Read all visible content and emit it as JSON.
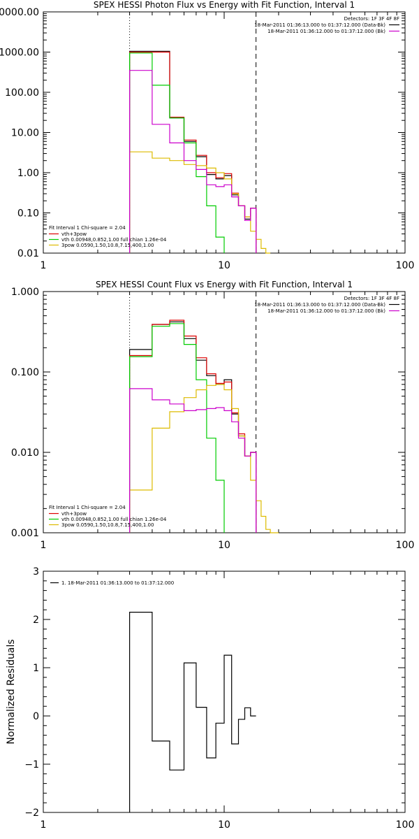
{
  "chart_data": [
    {
      "type": "line",
      "title": "SPEX HESSI Photon Flux vs Energy with Fit Function, Interval 1",
      "xscale": "log",
      "yscale": "log",
      "xlim": [
        1,
        100
      ],
      "ylim": [
        0.01,
        10000
      ],
      "x_ticks": [
        1,
        10,
        100
      ],
      "x_tick_labels": [
        "1",
        "10",
        "100"
      ],
      "y_ticks": [
        0.01,
        0.1,
        1,
        10,
        100,
        1000,
        10000
      ],
      "y_tick_labels": [
        "0.01",
        "0.10",
        "1.00",
        "10.00",
        "100.00",
        "1000.00",
        "10000.00"
      ],
      "vlines": [
        {
          "x": 3,
          "style": "dotted"
        },
        {
          "x": 15,
          "style": "dashed"
        }
      ],
      "bin_edges": [
        3,
        4,
        5,
        6,
        7,
        8,
        9,
        10,
        11,
        12,
        13,
        14,
        15,
        16,
        17,
        18,
        19,
        20
      ],
      "legend_top": {
        "line1": "Detectors: 1F 3F 4F 8F",
        "entries": [
          {
            "label": "18-Mar-2011 01:36:13.000 to 01:37:12.000 (Data-Bk)",
            "color": "#000000"
          },
          {
            "label": "18-Mar-2011 01:36:12.000 to 01:37:12.000 (Bk)",
            "color": "#cc00cc"
          }
        ]
      },
      "legend_bottom": {
        "line1": "Fit Interval 1    Chi-square = 2.04",
        "entries": [
          {
            "label": "vth+3pow",
            "color": "#dd0000"
          },
          {
            "label": "vth 0.00948,0.852,1.00   full chian 1.26e-04",
            "color": "#00cc00"
          },
          {
            "label": "3pow 0.0590,1.50,10.8,7.15,400,1.00",
            "color": "#ddbb00"
          }
        ]
      },
      "series": [
        {
          "color": "#000000",
          "values": [
            1050,
            1050,
            23,
            6,
            2.5,
            0.9,
            0.7,
            0.85,
            0.28,
            0.15,
            0.07,
            0.13
          ]
        },
        {
          "color": "#dd0000",
          "values": [
            1000,
            1000,
            24,
            6.5,
            2.7,
            1.0,
            0.75,
            0.95,
            0.31,
            0.15,
            0.08,
            0.13
          ]
        },
        {
          "color": "#00cc00",
          "values": [
            950,
            150,
            23,
            5.5,
            0.8,
            0.15,
            0.025
          ]
        },
        {
          "color": "#ddbb00",
          "values": [
            3.3,
            2.3,
            2.0,
            1.6,
            1.5,
            1.3,
            1.0,
            0.7,
            0.3,
            0.15,
            0.08,
            0.035,
            0.022,
            0.013,
            0.009
          ]
        },
        {
          "color": "#cc00cc",
          "values": [
            350,
            16,
            5.5,
            2.0,
            1.2,
            0.5,
            0.45,
            0.5,
            0.25,
            0.15,
            0.065,
            0.13
          ]
        }
      ]
    },
    {
      "type": "line",
      "title": "SPEX HESSI Count Flux vs Energy with Fit Function, Interval 1",
      "xscale": "log",
      "yscale": "log",
      "xlim": [
        1,
        100
      ],
      "ylim": [
        0.001,
        1
      ],
      "x_ticks": [
        1,
        10,
        100
      ],
      "x_tick_labels": [
        "1",
        "10",
        "100"
      ],
      "y_ticks": [
        0.001,
        0.01,
        0.1,
        1
      ],
      "y_tick_labels": [
        "0.001",
        "0.010",
        "0.100",
        "1.000"
      ],
      "vlines": [
        {
          "x": 3,
          "style": "dotted"
        },
        {
          "x": 15,
          "style": "dashed"
        }
      ],
      "bin_edges": [
        3,
        4,
        5,
        6,
        7,
        8,
        9,
        10,
        11,
        12,
        13,
        14,
        15,
        16,
        17,
        18,
        19,
        20
      ],
      "legend_top": {
        "line1": "Detectors: 1F 3F 4F 8F",
        "entries": [
          {
            "label": "18-Mar-2011 01:36:13.000 to 01:37:12.000 (Data-Bk)",
            "color": "#000000"
          },
          {
            "label": "18-Mar-2011 01:36:12.000 to 01:37:12.000 (Bk)",
            "color": "#cc00cc"
          }
        ]
      },
      "legend_bottom": {
        "line1": "Fit Interval 1    Chi-square = 2.04",
        "entries": [
          {
            "label": "vth+3pow",
            "color": "#dd0000"
          },
          {
            "label": "vth 0.00948,0.852,1.00   full chian 1.26e-04",
            "color": "#00cc00"
          },
          {
            "label": "3pow 0.0590,1.50,10.8,7.15,400,1.00",
            "color": "#ddbb00"
          }
        ]
      },
      "series": [
        {
          "color": "#000000",
          "values": [
            0.19,
            0.39,
            0.42,
            0.26,
            0.14,
            0.09,
            0.07,
            0.08,
            0.03,
            0.016,
            0.009,
            0.01
          ]
        },
        {
          "color": "#dd0000",
          "values": [
            0.16,
            0.39,
            0.44,
            0.28,
            0.15,
            0.095,
            0.072,
            0.075,
            0.031,
            0.017,
            0.009,
            0.01
          ]
        },
        {
          "color": "#00cc00",
          "values": [
            0.155,
            0.37,
            0.4,
            0.22,
            0.08,
            0.015,
            0.0045
          ]
        },
        {
          "color": "#ddbb00",
          "values": [
            0.0034,
            0.02,
            0.032,
            0.048,
            0.06,
            0.068,
            0.07,
            0.06,
            0.035,
            0.016,
            0.009,
            0.0045,
            0.0025,
            0.0016,
            0.0011,
            0.001,
            0.001
          ]
        },
        {
          "color": "#cc00cc",
          "values": [
            0.062,
            0.045,
            0.04,
            0.033,
            0.034,
            0.035,
            0.036,
            0.033,
            0.024,
            0.015,
            0.009,
            0.01
          ]
        }
      ]
    },
    {
      "type": "line",
      "xscale": "log",
      "yscale": "linear",
      "xlim": [
        1,
        100
      ],
      "ylim": [
        -2,
        3
      ],
      "x_ticks": [
        1,
        10,
        100
      ],
      "x_tick_labels": [
        "1",
        "10",
        "100"
      ],
      "y_ticks": [
        -2,
        -1,
        0,
        1,
        2,
        3
      ],
      "y_tick_labels": [
        "−2",
        "−1",
        "0",
        "1",
        "2",
        "3"
      ],
      "ylabel": "Normalized Residuals",
      "bin_edges": [
        3,
        4,
        5,
        6,
        7,
        8,
        9,
        10,
        11,
        12,
        13,
        14,
        15
      ],
      "legend": {
        "label": "1. 18-Mar-2011 01:36:13.000 to 01:37:12.000",
        "color": "#000000"
      },
      "series": [
        {
          "color": "#000000",
          "values": [
            2.15,
            -0.52,
            -1.12,
            1.1,
            0.18,
            -0.87,
            -0.15,
            1.26,
            -0.58,
            -0.07,
            0.17,
            0
          ]
        }
      ]
    }
  ]
}
